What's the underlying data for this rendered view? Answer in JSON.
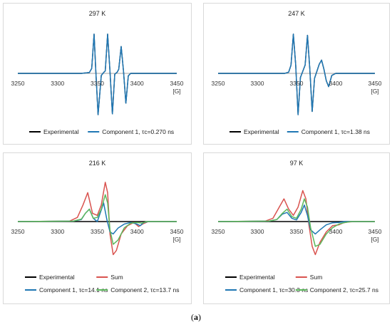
{
  "caption": {
    "open": "(",
    "letter": "a",
    "close": ")"
  },
  "chart_data": [
    {
      "type": "line",
      "title": "297 K",
      "xlim": [
        3250,
        3450
      ],
      "xticks": [
        "3250",
        "3300",
        "3350",
        "3400",
        "3450"
      ],
      "xunit": "[G]",
      "legend": [
        "Experimental",
        "Component 1, τc=0.270 ns"
      ],
      "colors": {
        "Experimental": "#000000",
        "Component 1": "#1f77b4"
      },
      "series": [
        {
          "name": "Experimental",
          "x": [
            3250,
            3330,
            3340,
            3343,
            3346,
            3348,
            3351,
            3355,
            3358,
            3360,
            3363,
            3366,
            3369,
            3372,
            3375,
            3377,
            3380,
            3383,
            3386,
            3389,
            3392,
            3450
          ],
          "y": [
            0,
            0,
            0.02,
            0.12,
            0.95,
            0.1,
            -1.0,
            -0.05,
            0.02,
            0.06,
            0.95,
            0.05,
            -0.98,
            -0.02,
            0.03,
            0.1,
            0.65,
            0.05,
            -0.72,
            -0.06,
            0,
            0
          ]
        },
        {
          "name": "Component 1, τc=0.270 ns",
          "x": [
            3250,
            3330,
            3340,
            3343,
            3346,
            3348,
            3351,
            3355,
            3358,
            3360,
            3363,
            3366,
            3369,
            3372,
            3375,
            3377,
            3380,
            3383,
            3386,
            3389,
            3392,
            3450
          ],
          "y": [
            0,
            0,
            0.02,
            0.12,
            0.95,
            0.1,
            -1.0,
            -0.05,
            0.02,
            0.06,
            0.95,
            0.05,
            -0.98,
            -0.02,
            0.03,
            0.1,
            0.65,
            0.05,
            -0.72,
            -0.06,
            0,
            0
          ]
        }
      ]
    },
    {
      "type": "line",
      "title": "247 K",
      "xlim": [
        3250,
        3450
      ],
      "xticks": [
        "3250",
        "3300",
        "3350",
        "3400",
        "3450"
      ],
      "xunit": "[G]",
      "legend": [
        "Experimental",
        "Component 1, τc=1.38 ns"
      ],
      "colors": {
        "Experimental": "#000000",
        "Component 1": "#1f77b4"
      },
      "series": [
        {
          "name": "Experimental",
          "x": [
            3250,
            3335,
            3340,
            3343,
            3346,
            3349,
            3352,
            3355,
            3358,
            3361,
            3364,
            3367,
            3370,
            3373,
            3376,
            3379,
            3382,
            3385,
            3388,
            3391,
            3395,
            3400,
            3450
          ],
          "y": [
            0,
            0,
            0.03,
            0.2,
            0.95,
            0.2,
            -1.0,
            -0.1,
            0.05,
            0.2,
            0.92,
            0.1,
            -0.92,
            -0.12,
            0.05,
            0.22,
            0.32,
            0.1,
            -0.18,
            -0.32,
            -0.05,
            0,
            0
          ]
        },
        {
          "name": "Component 1, τc=1.38 ns",
          "x": [
            3250,
            3335,
            3340,
            3343,
            3346,
            3349,
            3352,
            3355,
            3358,
            3361,
            3364,
            3367,
            3370,
            3373,
            3376,
            3379,
            3382,
            3385,
            3388,
            3391,
            3395,
            3400,
            3450
          ],
          "y": [
            0,
            0,
            0.03,
            0.2,
            0.95,
            0.2,
            -1.0,
            -0.1,
            0.05,
            0.2,
            0.92,
            0.1,
            -0.92,
            -0.12,
            0.05,
            0.22,
            0.32,
            0.1,
            -0.18,
            -0.32,
            -0.05,
            0,
            0
          ]
        }
      ]
    },
    {
      "type": "line",
      "title": "216 K",
      "xlim": [
        3250,
        3450
      ],
      "xticks": [
        "3250",
        "3300",
        "3350",
        "3400",
        "3450"
      ],
      "xunit": "[G]",
      "legend": [
        "Experimental",
        "Sum",
        "Component 1, τc=14.1 ns",
        "Component 2, τc=13.7 ns"
      ],
      "colors": {
        "Experimental": "#000000",
        "Sum": "#d9534f",
        "Component 1": "#1f77b4",
        "Component 2": "#5cb85c"
      },
      "series": [
        {
          "name": "Experimental",
          "x": [
            3250,
            3450
          ],
          "y": [
            0,
            0
          ]
        },
        {
          "name": "Sum",
          "x": [
            3250,
            3315,
            3325,
            3332,
            3338,
            3344,
            3350,
            3355,
            3360,
            3363,
            3366,
            3370,
            3374,
            3380,
            3388,
            3396,
            3402,
            3408,
            3414,
            3420,
            3450
          ],
          "y": [
            0,
            0.01,
            0.1,
            0.4,
            0.7,
            0.2,
            0.15,
            0.4,
            0.95,
            0.7,
            -0.3,
            -0.8,
            -0.7,
            -0.3,
            -0.1,
            -0.02,
            -0.12,
            -0.05,
            0,
            0,
            0
          ]
        },
        {
          "name": "Component 1, τc=14.1 ns",
          "x": [
            3250,
            3320,
            3330,
            3335,
            3340,
            3345,
            3350,
            3355,
            3358,
            3362,
            3366,
            3370,
            3376,
            3384,
            3392,
            3400,
            3404,
            3408,
            3414,
            3420,
            3450
          ],
          "y": [
            0,
            0.01,
            0.05,
            0.2,
            0.3,
            0.08,
            0,
            0.28,
            0.45,
            0.05,
            -0.25,
            -0.3,
            -0.16,
            -0.06,
            -0.02,
            -0.06,
            -0.1,
            -0.03,
            0,
            0,
            0
          ]
        },
        {
          "name": "Component 2, τc=13.7 ns",
          "x": [
            3250,
            3320,
            3330,
            3335,
            3340,
            3345,
            3350,
            3355,
            3360,
            3363,
            3366,
            3370,
            3376,
            3384,
            3392,
            3400,
            3406,
            3412,
            3420,
            3450
          ],
          "y": [
            0,
            0.01,
            0.06,
            0.2,
            0.3,
            0.08,
            0.1,
            0.3,
            0.65,
            0.45,
            -0.2,
            -0.55,
            -0.45,
            -0.15,
            -0.04,
            -0.02,
            -0.04,
            0,
            0,
            0
          ]
        }
      ]
    },
    {
      "type": "line",
      "title": "97 K",
      "xlim": [
        3250,
        3450
      ],
      "xticks": [
        "3250",
        "3300",
        "3350",
        "3400",
        "3450"
      ],
      "xunit": "[G]",
      "legend": [
        "Experimental",
        "Sum",
        "Component 1, τc=30.3 ns",
        "Component 2, τc=25.7 ns"
      ],
      "colors": {
        "Experimental": "#000000",
        "Sum": "#d9534f",
        "Component 1": "#1f77b4",
        "Component 2": "#5cb85c"
      },
      "series": [
        {
          "name": "Experimental",
          "x": [
            3250,
            3450
          ],
          "y": [
            0,
            0
          ]
        },
        {
          "name": "Sum",
          "x": [
            3250,
            3310,
            3320,
            3328,
            3334,
            3340,
            3346,
            3352,
            3358,
            3362,
            3366,
            3370,
            3374,
            3380,
            3388,
            3396,
            3404,
            3410,
            3416,
            3424,
            3450
          ],
          "y": [
            0,
            0.01,
            0.08,
            0.35,
            0.55,
            0.3,
            0.15,
            0.35,
            0.75,
            0.55,
            -0.1,
            -0.6,
            -0.8,
            -0.5,
            -0.25,
            -0.1,
            -0.08,
            -0.03,
            -0.01,
            0,
            0
          ]
        },
        {
          "name": "Component 1, τc=30.3 ns",
          "x": [
            3250,
            3315,
            3325,
            3332,
            3338,
            3344,
            3350,
            3356,
            3360,
            3364,
            3368,
            3374,
            3380,
            3388,
            3396,
            3404,
            3412,
            3420,
            3450
          ],
          "y": [
            0,
            0.01,
            0.05,
            0.18,
            0.22,
            0.08,
            0.04,
            0.22,
            0.4,
            0.15,
            -0.2,
            -0.3,
            -0.2,
            -0.08,
            -0.03,
            -0.02,
            0,
            0,
            0
          ]
        },
        {
          "name": "Component 2, τc=25.7 ns",
          "x": [
            3250,
            3315,
            3325,
            3332,
            3338,
            3344,
            3350,
            3356,
            3360,
            3364,
            3368,
            3374,
            3380,
            3388,
            3396,
            3404,
            3412,
            3420,
            3450
          ],
          "y": [
            0,
            0.01,
            0.05,
            0.2,
            0.3,
            0.12,
            0.08,
            0.3,
            0.55,
            0.35,
            -0.15,
            -0.6,
            -0.55,
            -0.3,
            -0.15,
            -0.06,
            -0.02,
            0,
            0
          ]
        }
      ]
    }
  ]
}
